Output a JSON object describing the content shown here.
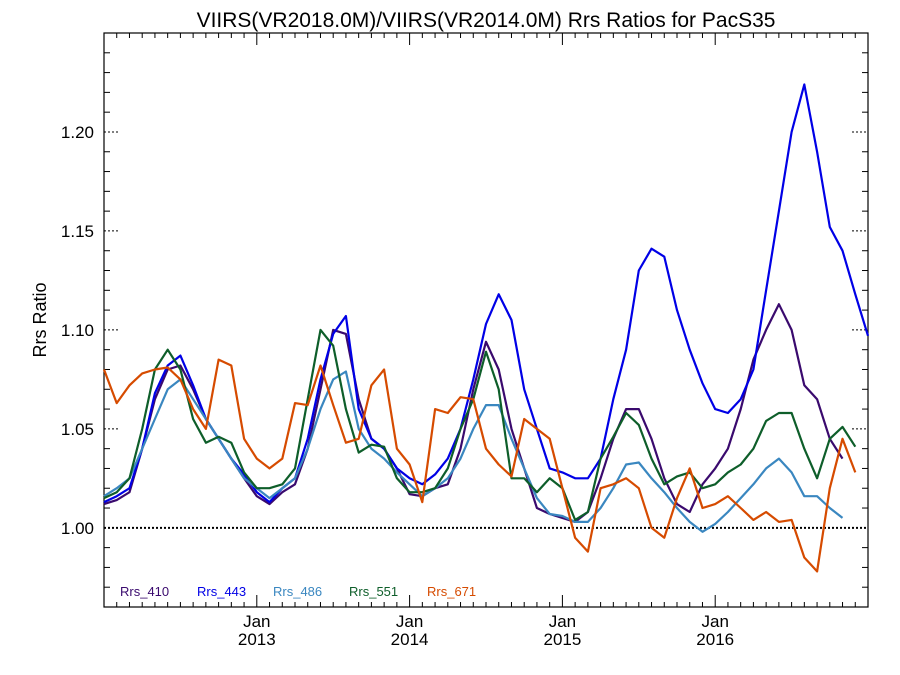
{
  "chart_data": {
    "type": "line",
    "title": "VIIRS(VR2018.0M)/VIIRS(VR2014.0M)  Rrs Ratios for PacS35",
    "ylabel": "Rrs Ratio",
    "xlabel": "",
    "ylim": [
      0.96,
      1.25
    ],
    "yticks": [
      1.0,
      1.05,
      1.1,
      1.15,
      1.2
    ],
    "ytick_labels": [
      "1.00",
      "1.05",
      "1.10",
      "1.15",
      "1.20"
    ],
    "xlim": [
      0,
      60
    ],
    "xticks": [
      {
        "at": 12,
        "line1": "Jan",
        "line2": "2013"
      },
      {
        "at": 24,
        "line1": "Jan",
        "line2": "2014"
      },
      {
        "at": 36,
        "line1": "Jan",
        "line2": "2015"
      },
      {
        "at": 48,
        "line1": "Jan",
        "line2": "2016"
      }
    ],
    "x_note": "x = months elapsed since the first point; major ticks at each January",
    "reference_line": 1.0,
    "grid": false,
    "legend_position": "bottom-left",
    "series": [
      {
        "name": "Rrs_410",
        "color": "#3a0a6e",
        "values": [
          1.012,
          1.014,
          1.018,
          1.04,
          1.065,
          1.08,
          1.082,
          1.07,
          1.055,
          1.045,
          1.035,
          1.025,
          1.016,
          1.012,
          1.018,
          1.022,
          1.04,
          1.07,
          1.1,
          1.098,
          1.065,
          1.045,
          1.04,
          1.03,
          1.017,
          1.016,
          1.02,
          1.022,
          1.04,
          1.07,
          1.094,
          1.08,
          1.05,
          1.03,
          1.01,
          1.007,
          1.005,
          1.003,
          1.008,
          1.025,
          1.045,
          1.06,
          1.06,
          1.045,
          1.025,
          1.012,
          1.008,
          1.022,
          1.03,
          1.04,
          1.06,
          1.085,
          1.1,
          1.113,
          1.1,
          1.072,
          1.065,
          1.045,
          1.035
        ]
      },
      {
        "name": "Rrs_443",
        "color": "#0000e6",
        "values": [
          1.013,
          1.016,
          1.02,
          1.04,
          1.068,
          1.082,
          1.087,
          1.072,
          1.055,
          1.045,
          1.035,
          1.027,
          1.018,
          1.013,
          1.02,
          1.025,
          1.045,
          1.075,
          1.098,
          1.107,
          1.06,
          1.045,
          1.04,
          1.03,
          1.025,
          1.022,
          1.027,
          1.035,
          1.05,
          1.075,
          1.103,
          1.118,
          1.105,
          1.07,
          1.05,
          1.03,
          1.028,
          1.025,
          1.025,
          1.035,
          1.065,
          1.09,
          1.13,
          1.141,
          1.137,
          1.11,
          1.09,
          1.073,
          1.06,
          1.058,
          1.065,
          1.08,
          1.12,
          1.16,
          1.2,
          1.224,
          1.19,
          1.152,
          1.14,
          1.118,
          1.097
        ]
      },
      {
        "name": "Rrs_486",
        "color": "#3a87c0",
        "values": [
          1.016,
          1.02,
          1.025,
          1.04,
          1.055,
          1.07,
          1.075,
          1.065,
          1.055,
          1.045,
          1.035,
          1.025,
          1.02,
          1.015,
          1.02,
          1.025,
          1.04,
          1.06,
          1.075,
          1.079,
          1.05,
          1.04,
          1.035,
          1.028,
          1.022,
          1.016,
          1.02,
          1.025,
          1.035,
          1.05,
          1.062,
          1.062,
          1.045,
          1.03,
          1.015,
          1.007,
          1.006,
          1.003,
          1.003,
          1.01,
          1.02,
          1.032,
          1.033,
          1.025,
          1.018,
          1.01,
          1.003,
          0.998,
          1.002,
          1.008,
          1.015,
          1.022,
          1.03,
          1.035,
          1.028,
          1.016,
          1.016,
          1.01,
          1.005
        ]
      },
      {
        "name": "Rrs_551",
        "color": "#0e5e2a",
        "values": [
          1.015,
          1.018,
          1.025,
          1.05,
          1.08,
          1.09,
          1.08,
          1.055,
          1.043,
          1.046,
          1.043,
          1.028,
          1.02,
          1.02,
          1.022,
          1.03,
          1.065,
          1.1,
          1.092,
          1.06,
          1.038,
          1.042,
          1.041,
          1.025,
          1.018,
          1.018,
          1.02,
          1.03,
          1.05,
          1.065,
          1.089,
          1.07,
          1.025,
          1.025,
          1.018,
          1.025,
          1.02,
          1.004,
          1.008,
          1.035,
          1.046,
          1.058,
          1.052,
          1.035,
          1.022,
          1.026,
          1.028,
          1.02,
          1.022,
          1.028,
          1.032,
          1.04,
          1.054,
          1.058,
          1.058,
          1.04,
          1.025,
          1.045,
          1.051,
          1.041
        ]
      },
      {
        "name": "Rrs_671",
        "color": "#d64b00",
        "values": [
          1.08,
          1.063,
          1.072,
          1.078,
          1.08,
          1.081,
          1.075,
          1.06,
          1.05,
          1.085,
          1.082,
          1.045,
          1.035,
          1.03,
          1.035,
          1.063,
          1.062,
          1.082,
          1.062,
          1.043,
          1.045,
          1.072,
          1.08,
          1.04,
          1.032,
          1.013,
          1.06,
          1.058,
          1.066,
          1.065,
          1.04,
          1.032,
          1.026,
          1.055,
          1.05,
          1.045,
          1.02,
          0.995,
          0.988,
          1.02,
          1.022,
          1.025,
          1.02,
          1.0,
          0.995,
          1.015,
          1.03,
          1.01,
          1.012,
          1.016,
          1.01,
          1.004,
          1.008,
          1.003,
          1.004,
          0.985,
          0.978,
          1.02,
          1.045,
          1.028
        ]
      }
    ]
  }
}
